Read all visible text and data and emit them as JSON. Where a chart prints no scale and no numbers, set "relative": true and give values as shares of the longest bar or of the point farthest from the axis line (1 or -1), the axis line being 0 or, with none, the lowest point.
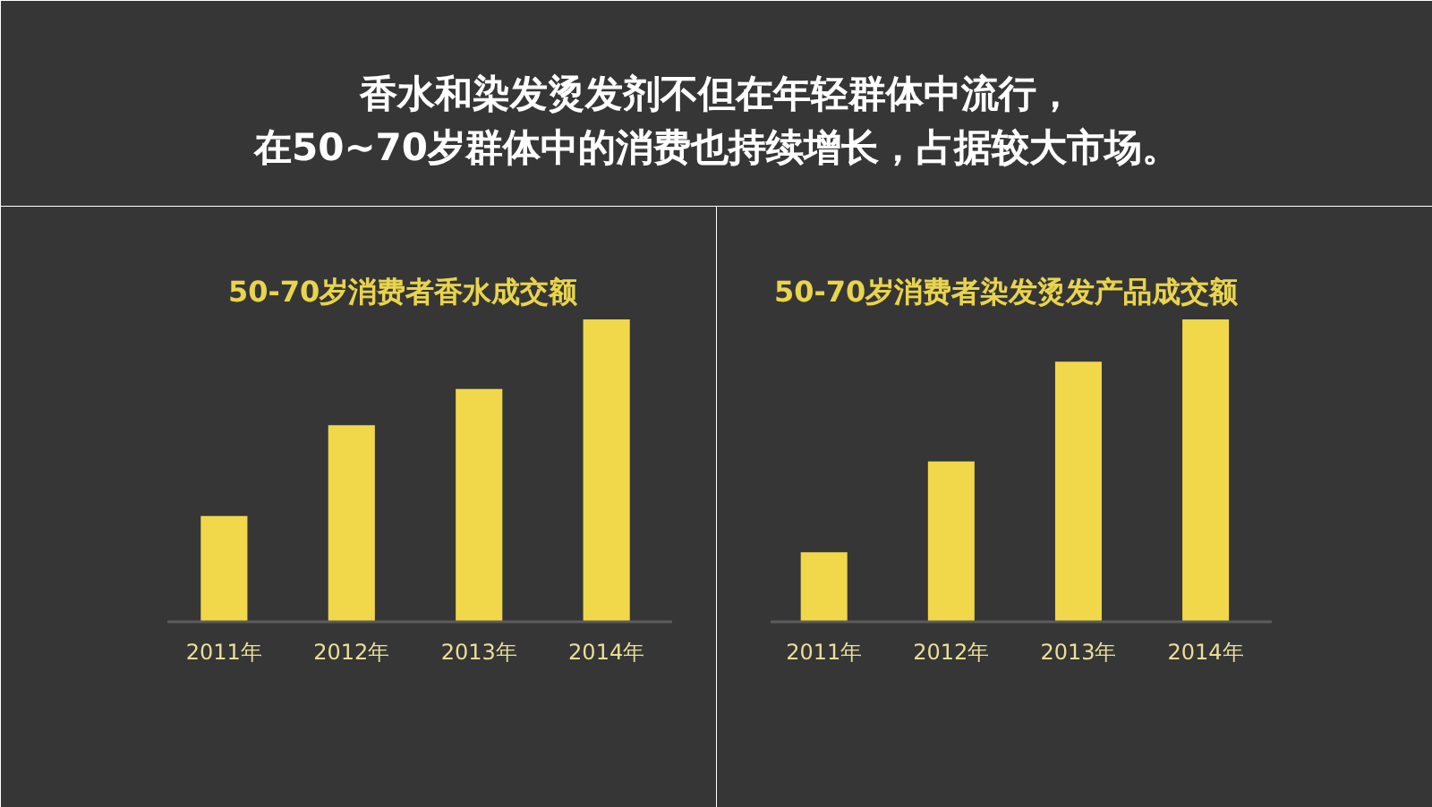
{
  "chart_data": [
    {
      "type": "other",
      "title": "香水和染发烫发剂不但在年轻群体中流行，在50~70岁群体中的消费也持续增长，占据较大市场。"
    },
    {
      "type": "bar",
      "title": "50-70岁消费者香水成交额",
      "categories": [
        "2011年",
        "2012年",
        "2013年",
        "2014年"
      ],
      "values": [
        0.35,
        0.65,
        0.77,
        1
      ],
      "color": "#f0d84a",
      "relative": true
    },
    {
      "type": "bar",
      "title": "50-70岁消费者染发烫发产品成交额",
      "categories": [
        "2011年",
        "2012年",
        "2013年",
        "2014年"
      ],
      "values": [
        0.23,
        0.53,
        0.86,
        1
      ],
      "color": "#f0d84a",
      "relative": true
    }
  ]
}
